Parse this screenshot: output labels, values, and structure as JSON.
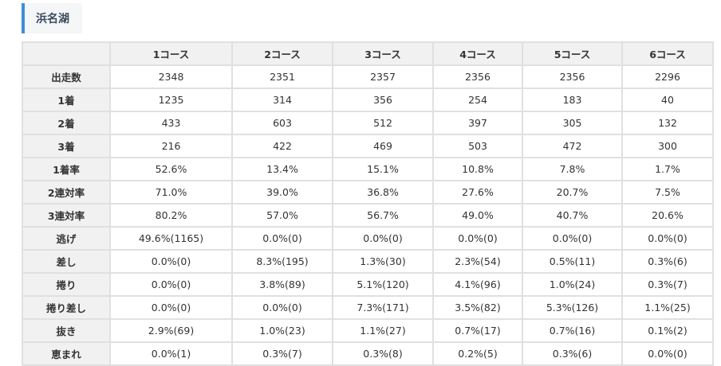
{
  "title": "浜名湖",
  "table": {
    "corner": "",
    "columns": [
      "1コース",
      "2コース",
      "3コース",
      "4コース",
      "5コース",
      "6コース"
    ],
    "rows": [
      {
        "label": "出走数",
        "cells": [
          "2348",
          "2351",
          "2357",
          "2356",
          "2356",
          "2296"
        ]
      },
      {
        "label": "1着",
        "cells": [
          "1235",
          "314",
          "356",
          "254",
          "183",
          "40"
        ]
      },
      {
        "label": "2着",
        "cells": [
          "433",
          "603",
          "512",
          "397",
          "305",
          "132"
        ]
      },
      {
        "label": "3着",
        "cells": [
          "216",
          "422",
          "469",
          "503",
          "472",
          "300"
        ]
      },
      {
        "label": "1着率",
        "cells": [
          "52.6%",
          "13.4%",
          "15.1%",
          "10.8%",
          "7.8%",
          "1.7%"
        ]
      },
      {
        "label": "2連対率",
        "cells": [
          "71.0%",
          "39.0%",
          "36.8%",
          "27.6%",
          "20.7%",
          "7.5%"
        ]
      },
      {
        "label": "3連対率",
        "cells": [
          "80.2%",
          "57.0%",
          "56.7%",
          "49.0%",
          "40.7%",
          "20.6%"
        ]
      },
      {
        "label": "逃げ",
        "cells": [
          "49.6%(1165)",
          "0.0%(0)",
          "0.0%(0)",
          "0.0%(0)",
          "0.0%(0)",
          "0.0%(0)"
        ]
      },
      {
        "label": "差し",
        "cells": [
          "0.0%(0)",
          "8.3%(195)",
          "1.3%(30)",
          "2.3%(54)",
          "0.5%(11)",
          "0.3%(6)"
        ]
      },
      {
        "label": "捲り",
        "cells": [
          "0.0%(0)",
          "3.8%(89)",
          "5.1%(120)",
          "4.1%(96)",
          "1.0%(24)",
          "0.3%(7)"
        ]
      },
      {
        "label": "捲り差し",
        "cells": [
          "0.0%(0)",
          "0.0%(0)",
          "7.3%(171)",
          "3.5%(82)",
          "5.3%(126)",
          "1.1%(25)"
        ]
      },
      {
        "label": "抜き",
        "cells": [
          "2.9%(69)",
          "1.0%(23)",
          "1.1%(27)",
          "0.7%(17)",
          "0.7%(16)",
          "0.1%(2)"
        ]
      },
      {
        "label": "恵まれ",
        "cells": [
          "0.0%(1)",
          "0.3%(7)",
          "0.3%(8)",
          "0.2%(5)",
          "0.3%(6)",
          "0.0%(0)"
        ]
      }
    ]
  },
  "colors": {
    "accent": "#3d8fd6",
    "header_bg": "#f1f1f1",
    "border": "#e0e0e0"
  }
}
